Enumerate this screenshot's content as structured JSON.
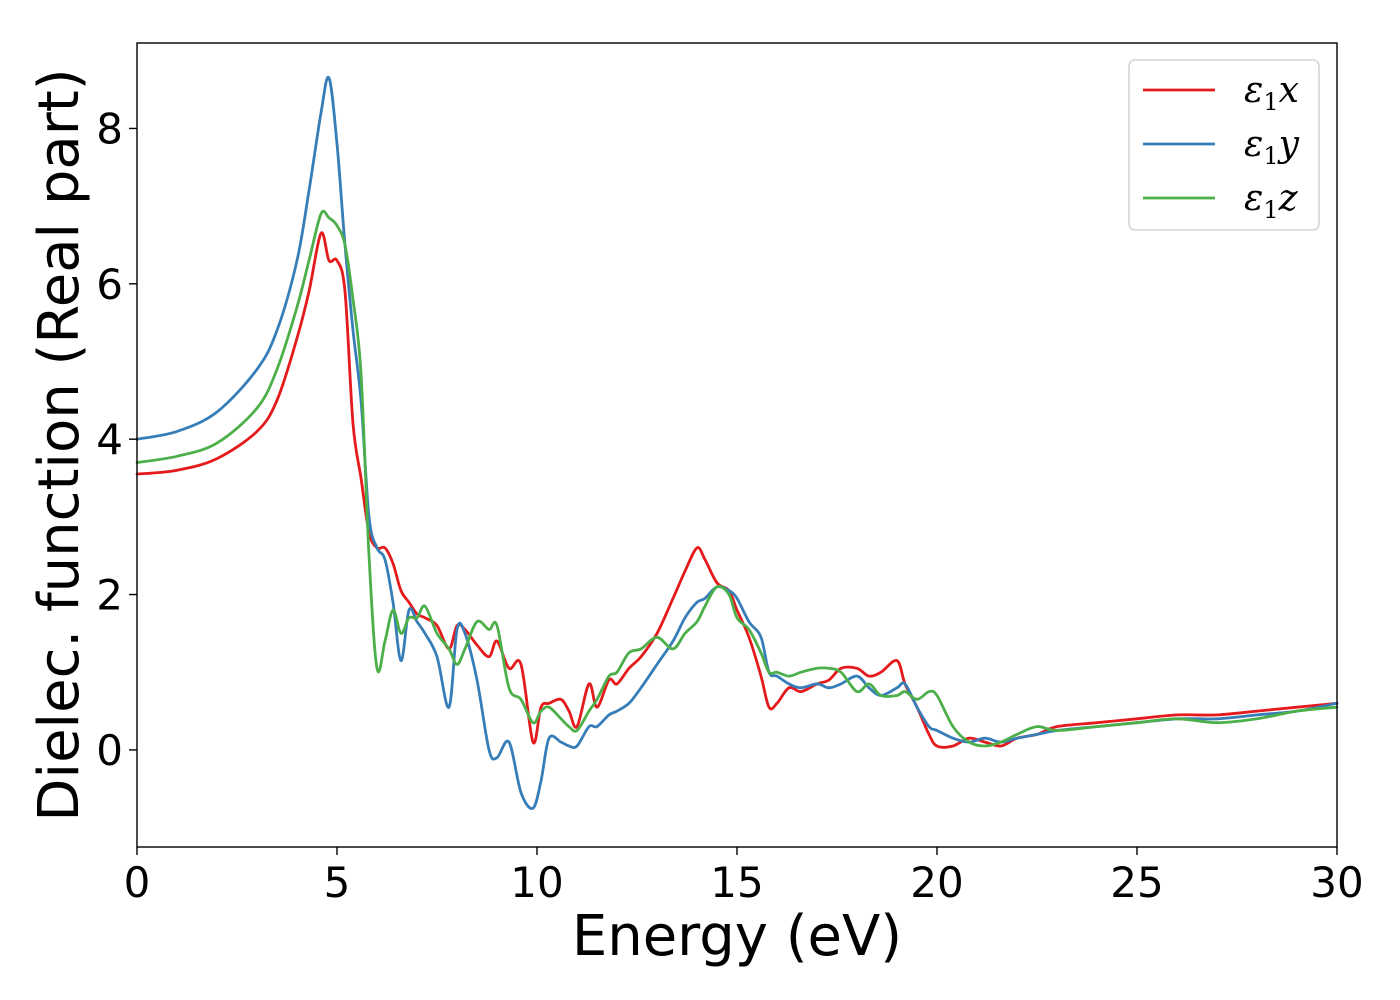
{
  "chart_data": {
    "type": "line",
    "xlabel": "Energy (eV)",
    "ylabel": "Dielec. function (Real part)",
    "xlim": [
      0,
      30
    ],
    "ylim": [
      -1.25,
      9.1
    ],
    "xticks": [
      0,
      5,
      10,
      15,
      20,
      25,
      30
    ],
    "yticks": [
      0,
      2,
      4,
      6,
      8
    ],
    "grid": false,
    "legend_position": "top-right",
    "series": [
      {
        "name": "ε1x",
        "legend_main": "ε",
        "legend_sub": "1",
        "legend_suffix": "x",
        "color": "#e41a1c",
        "x": [
          0,
          1,
          2,
          3,
          3.5,
          4,
          4.3,
          4.6,
          4.8,
          5.0,
          5.2,
          5.4,
          5.6,
          5.8,
          6.0,
          6.2,
          6.4,
          6.6,
          6.8,
          7.0,
          7.2,
          7.5,
          7.8,
          8.0,
          8.2,
          8.5,
          8.8,
          9.0,
          9.3,
          9.6,
          9.9,
          10.1,
          10.3,
          10.6,
          10.8,
          11.0,
          11.3,
          11.5,
          11.8,
          12.0,
          12.3,
          12.6,
          13.0,
          13.4,
          13.7,
          14.0,
          14.2,
          14.5,
          14.8,
          15.0,
          15.3,
          15.6,
          15.8,
          16.0,
          16.3,
          16.6,
          17.0,
          17.3,
          17.6,
          18.0,
          18.3,
          18.6,
          19.0,
          19.2,
          19.5,
          19.8,
          20.0,
          20.4,
          20.8,
          21.2,
          21.6,
          22.0,
          22.5,
          23.0,
          24.0,
          25.0,
          26.0,
          27.0,
          28.0,
          29.0,
          30.0
        ],
        "values": [
          3.55,
          3.6,
          3.75,
          4.1,
          4.5,
          5.3,
          5.9,
          6.65,
          6.3,
          6.3,
          5.9,
          4.2,
          3.5,
          2.8,
          2.6,
          2.6,
          2.4,
          2.05,
          1.9,
          1.75,
          1.7,
          1.6,
          1.3,
          1.6,
          1.55,
          1.35,
          1.2,
          1.4,
          1.05,
          1.1,
          0.1,
          0.55,
          0.6,
          0.65,
          0.5,
          0.3,
          0.85,
          0.55,
          0.9,
          0.85,
          1.05,
          1.2,
          1.5,
          1.95,
          2.3,
          2.6,
          2.45,
          2.15,
          2.05,
          1.8,
          1.45,
          0.95,
          0.55,
          0.6,
          0.8,
          0.75,
          0.85,
          0.9,
          1.05,
          1.05,
          0.95,
          1.0,
          1.15,
          0.85,
          0.55,
          0.2,
          0.05,
          0.05,
          0.15,
          0.1,
          0.05,
          0.15,
          0.2,
          0.3,
          0.35,
          0.4,
          0.45,
          0.45,
          0.5,
          0.55,
          0.6
        ]
      },
      {
        "name": "ε1y",
        "legend_main": "ε",
        "legend_sub": "1",
        "legend_suffix": "y",
        "color": "#377eb8",
        "x": [
          0,
          1,
          2,
          3,
          3.5,
          4,
          4.3,
          4.6,
          4.8,
          5.0,
          5.2,
          5.4,
          5.6,
          5.8,
          6.0,
          6.2,
          6.4,
          6.6,
          6.8,
          7.0,
          7.2,
          7.5,
          7.8,
          8.0,
          8.2,
          8.5,
          8.8,
          9.0,
          9.3,
          9.6,
          9.9,
          10.1,
          10.3,
          10.6,
          10.8,
          11.0,
          11.3,
          11.5,
          11.8,
          12.0,
          12.3,
          12.6,
          13.0,
          13.4,
          13.7,
          14.0,
          14.2,
          14.5,
          14.8,
          15.0,
          15.3,
          15.6,
          15.8,
          16.0,
          16.3,
          16.6,
          17.0,
          17.3,
          17.6,
          18.0,
          18.3,
          18.6,
          19.0,
          19.2,
          19.5,
          19.8,
          20.0,
          20.4,
          20.8,
          21.2,
          21.6,
          22.0,
          22.5,
          23.0,
          24.0,
          25.0,
          26.0,
          27.0,
          28.0,
          29.0,
          30.0
        ],
        "values": [
          4.0,
          4.1,
          4.35,
          4.9,
          5.4,
          6.3,
          7.2,
          8.2,
          8.65,
          7.8,
          6.5,
          5.4,
          4.5,
          3.0,
          2.6,
          2.45,
          1.9,
          1.15,
          1.8,
          1.65,
          1.5,
          1.2,
          0.55,
          1.55,
          1.5,
          0.9,
          0.0,
          -0.1,
          0.1,
          -0.55,
          -0.75,
          -0.4,
          0.15,
          0.1,
          0.05,
          0.05,
          0.3,
          0.3,
          0.45,
          0.5,
          0.6,
          0.8,
          1.1,
          1.4,
          1.7,
          1.9,
          1.95,
          2.1,
          2.05,
          1.95,
          1.65,
          1.45,
          1.0,
          0.95,
          0.85,
          0.8,
          0.85,
          0.8,
          0.85,
          0.95,
          0.8,
          0.7,
          0.8,
          0.85,
          0.55,
          0.3,
          0.25,
          0.15,
          0.1,
          0.15,
          0.1,
          0.15,
          0.2,
          0.25,
          0.3,
          0.35,
          0.4,
          0.4,
          0.45,
          0.5,
          0.6
        ]
      },
      {
        "name": "ε1z",
        "legend_main": "ε",
        "legend_sub": "1",
        "legend_suffix": "z",
        "color": "#4daf4a",
        "x": [
          0,
          1,
          2,
          3,
          3.5,
          4,
          4.3,
          4.6,
          4.8,
          5.0,
          5.2,
          5.4,
          5.6,
          5.8,
          6.0,
          6.2,
          6.4,
          6.6,
          6.8,
          7.0,
          7.2,
          7.5,
          7.8,
          8.0,
          8.2,
          8.5,
          8.8,
          9.0,
          9.3,
          9.6,
          9.9,
          10.1,
          10.3,
          10.6,
          10.8,
          11.0,
          11.3,
          11.5,
          11.8,
          12.0,
          12.3,
          12.6,
          13.0,
          13.4,
          13.7,
          14.0,
          14.2,
          14.5,
          14.8,
          15.0,
          15.3,
          15.6,
          15.8,
          16.0,
          16.3,
          16.6,
          17.0,
          17.3,
          17.6,
          18.0,
          18.3,
          18.6,
          19.0,
          19.2,
          19.5,
          19.8,
          20.0,
          20.4,
          20.8,
          21.2,
          21.6,
          22.0,
          22.5,
          23.0,
          24.0,
          25.0,
          26.0,
          27.0,
          28.0,
          29.0,
          30.0
        ],
        "values": [
          3.7,
          3.78,
          3.95,
          4.4,
          4.9,
          5.7,
          6.3,
          6.9,
          6.85,
          6.75,
          6.5,
          5.8,
          4.85,
          2.5,
          1.05,
          1.4,
          1.8,
          1.5,
          1.7,
          1.7,
          1.85,
          1.5,
          1.3,
          1.1,
          1.3,
          1.65,
          1.55,
          1.6,
          0.8,
          0.65,
          0.35,
          0.5,
          0.55,
          0.4,
          0.3,
          0.25,
          0.5,
          0.65,
          0.95,
          1.0,
          1.25,
          1.3,
          1.45,
          1.3,
          1.5,
          1.65,
          1.85,
          2.1,
          2.0,
          1.7,
          1.55,
          1.25,
          1.0,
          1.0,
          0.95,
          1.0,
          1.05,
          1.05,
          1.0,
          0.75,
          0.85,
          0.7,
          0.7,
          0.75,
          0.65,
          0.75,
          0.7,
          0.3,
          0.1,
          0.05,
          0.1,
          0.2,
          0.3,
          0.25,
          0.3,
          0.35,
          0.4,
          0.35,
          0.4,
          0.5,
          0.55
        ]
      }
    ]
  }
}
